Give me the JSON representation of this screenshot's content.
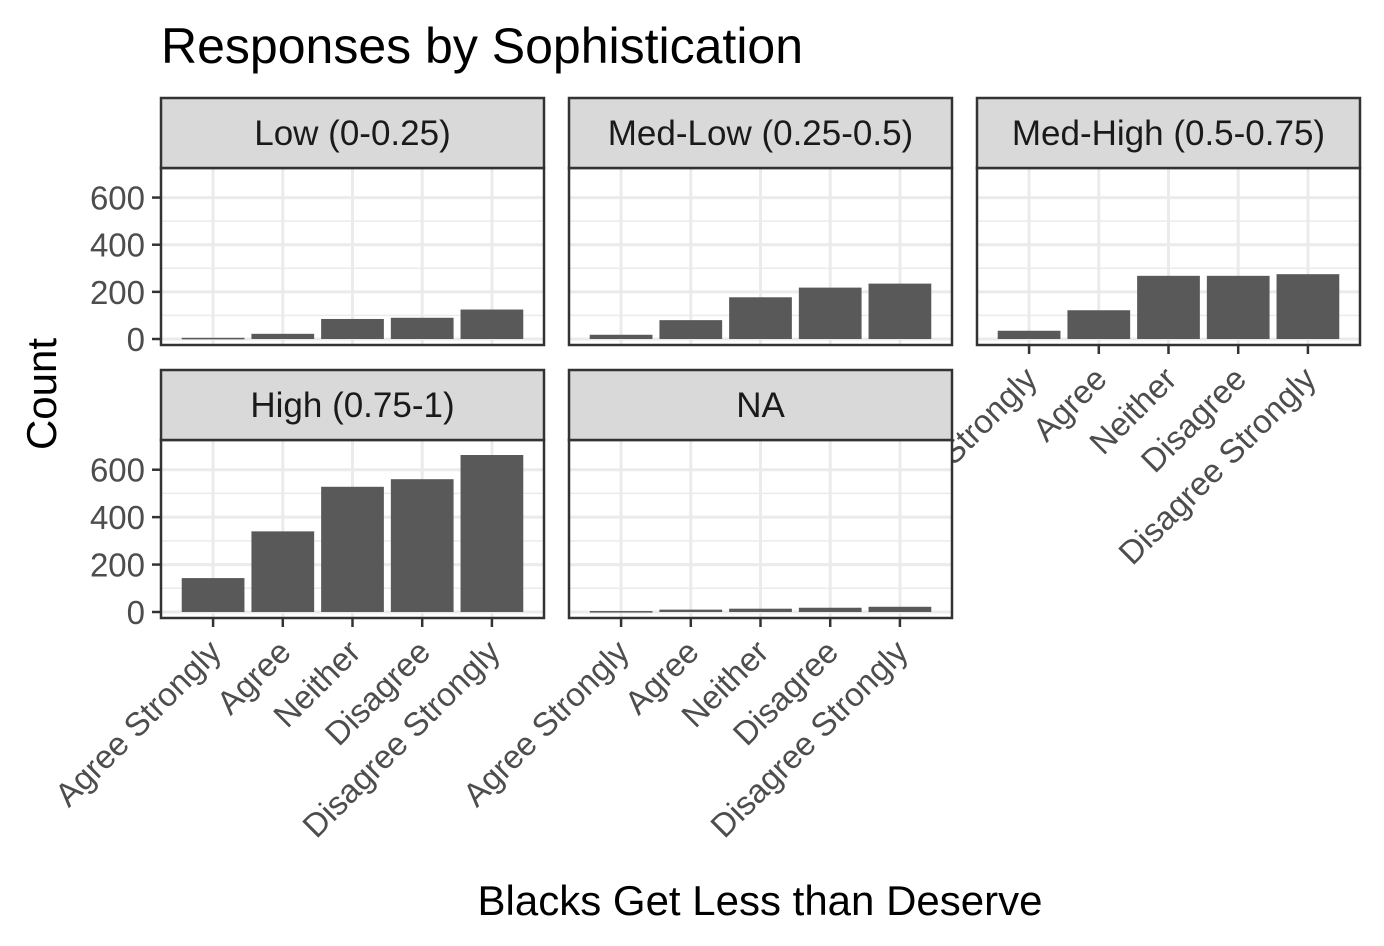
{
  "chart_data": {
    "type": "bar",
    "title": "Responses by Sophistication",
    "xlabel": "Blacks Get Less than Deserve",
    "ylabel": "Count",
    "categories": [
      "Agree Strongly",
      "Agree",
      "Neither",
      "Disagree",
      "Disagree Strongly"
    ],
    "ylim": [
      0,
      700
    ],
    "y_ticks": [
      0,
      200,
      400,
      600
    ],
    "grid": true,
    "colors": {
      "bar": "#595959",
      "panel_background": "#ffffff",
      "grid": "#ebebeb",
      "strip_background": "#d9d9d9",
      "border": "#333333"
    },
    "facets": [
      {
        "label": "Low (0-0.25)",
        "values": [
          5,
          22,
          85,
          90,
          125
        ]
      },
      {
        "label": "Med-Low (0.25-0.5)",
        "values": [
          18,
          80,
          177,
          218,
          235
        ]
      },
      {
        "label": "Med-High (0.5-0.75)",
        "values": [
          35,
          122,
          268,
          268,
          275
        ]
      },
      {
        "label": "High (0.75-1)",
        "values": [
          143,
          340,
          528,
          560,
          662
        ]
      },
      {
        "label": "NA",
        "values": [
          4,
          10,
          14,
          18,
          22
        ]
      }
    ]
  }
}
